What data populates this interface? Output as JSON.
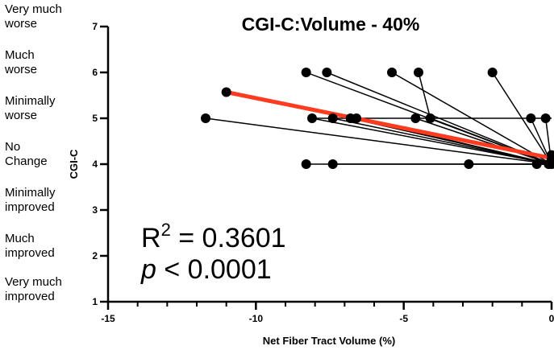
{
  "chart_data": {
    "type": "scatter",
    "title": "CGI-C:Volume - 40%",
    "xlabel": "Net Fiber Tract Volume (%)",
    "ylabel": "CGI-C",
    "xlim": [
      -15,
      0
    ],
    "ylim": [
      1,
      7
    ],
    "x_ticks": [
      "-15",
      "-10",
      "-5",
      "0"
    ],
    "y_ticks": [
      "1",
      "2",
      "3",
      "4",
      "5",
      "6",
      "7"
    ],
    "y_category_labels": [
      {
        "value": 7,
        "lines": [
          "Very much",
          "worse"
        ]
      },
      {
        "value": 6,
        "lines": [
          "Much",
          "worse"
        ]
      },
      {
        "value": 5,
        "lines": [
          "Minimally",
          "worse"
        ]
      },
      {
        "value": 4,
        "lines": [
          "No",
          "Change"
        ]
      },
      {
        "value": 3,
        "lines": [
          "Minimally",
          "improved"
        ]
      },
      {
        "value": 2,
        "lines": [
          "Much",
          "improved"
        ]
      },
      {
        "value": 1,
        "lines": [
          "Very much",
          "improved"
        ]
      }
    ],
    "segments": [
      {
        "x": [
          -8.3,
          0
        ],
        "y": [
          6,
          4
        ]
      },
      {
        "x": [
          -7.6,
          0
        ],
        "y": [
          6,
          4
        ]
      },
      {
        "x": [
          -5.4,
          0
        ],
        "y": [
          6,
          4
        ]
      },
      {
        "x": [
          -4.5,
          -4.1
        ],
        "y": [
          6,
          5
        ]
      },
      {
        "x": [
          -2.0,
          0
        ],
        "y": [
          6,
          4
        ]
      },
      {
        "x": [
          -11.7,
          0
        ],
        "y": [
          5,
          4
        ]
      },
      {
        "x": [
          -8.1,
          0
        ],
        "y": [
          5,
          4
        ]
      },
      {
        "x": [
          -7.4,
          0
        ],
        "y": [
          5,
          4
        ]
      },
      {
        "x": [
          -6.8,
          0
        ],
        "y": [
          5,
          4
        ]
      },
      {
        "x": [
          -6.6,
          0
        ],
        "y": [
          5,
          4
        ]
      },
      {
        "x": [
          -4.6,
          0
        ],
        "y": [
          5,
          4
        ]
      },
      {
        "x": [
          -4.1,
          0
        ],
        "y": [
          5,
          4
        ]
      },
      {
        "x": [
          -0.7,
          0
        ],
        "y": [
          5,
          4
        ]
      },
      {
        "x": [
          -8.1,
          0
        ],
        "y": [
          5,
          5
        ]
      },
      {
        "x": [
          -0.2,
          0
        ],
        "y": [
          5,
          4
        ]
      },
      {
        "x": [
          -8.3,
          0
        ],
        "y": [
          4,
          4
        ]
      },
      {
        "x": [
          -7.4,
          0
        ],
        "y": [
          4,
          4
        ]
      },
      {
        "x": [
          -2.8,
          0
        ],
        "y": [
          4,
          4
        ]
      },
      {
        "x": [
          -0.5,
          0
        ],
        "y": [
          4,
          4
        ]
      }
    ],
    "points": [
      {
        "x": -8.3,
        "y": 6
      },
      {
        "x": -7.6,
        "y": 6
      },
      {
        "x": -5.4,
        "y": 6
      },
      {
        "x": -4.5,
        "y": 6
      },
      {
        "x": -2.0,
        "y": 6
      },
      {
        "x": -11.7,
        "y": 5
      },
      {
        "x": -8.1,
        "y": 5
      },
      {
        "x": -7.4,
        "y": 5
      },
      {
        "x": -6.8,
        "y": 5
      },
      {
        "x": -6.6,
        "y": 5
      },
      {
        "x": -4.6,
        "y": 5
      },
      {
        "x": -4.1,
        "y": 5
      },
      {
        "x": -0.7,
        "y": 5
      },
      {
        "x": -0.2,
        "y": 5
      },
      {
        "x": -8.3,
        "y": 4
      },
      {
        "x": -7.4,
        "y": 4
      },
      {
        "x": -2.8,
        "y": 4
      },
      {
        "x": -0.5,
        "y": 4
      },
      {
        "x": 0,
        "y": 4
      },
      {
        "x": 0,
        "y": 4.1
      },
      {
        "x": 0,
        "y": 4.2
      },
      {
        "x": -0.1,
        "y": 4.0
      }
    ],
    "regression": {
      "x": [
        -11.0,
        0
      ],
      "y": [
        5.57,
        4.13
      ],
      "color": "#ff3b1f"
    },
    "highlight_point": {
      "x": -11.0,
      "y": 5.57
    },
    "annotations": {
      "r2_label": "R",
      "r2_sup": "2",
      "r2_value": " = 0.3601",
      "p_label": "p",
      "p_value": " < 0.0001"
    },
    "colors": {
      "points": "#000000",
      "regression": "#ff3b1f"
    },
    "grid": false
  }
}
